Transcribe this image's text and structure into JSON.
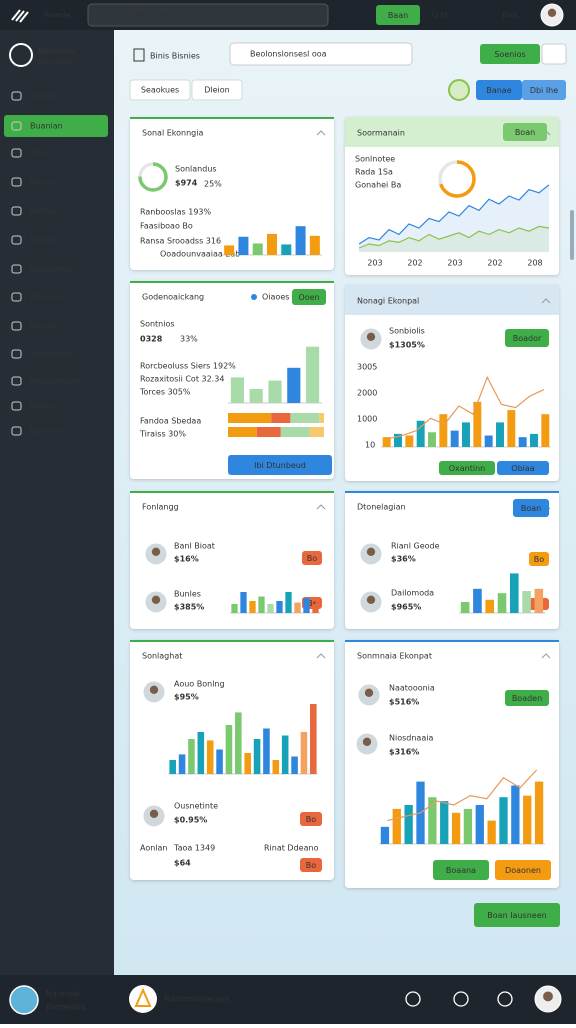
{
  "topbar": {
    "brand": "Rewde",
    "search": "Iuson Blfannglis",
    "button": "Baan",
    "icons": [
      "O ts",
      "Boo"
    ]
  },
  "sidebar": {
    "logo": [
      "Neneate",
      "Hooiiaue"
    ],
    "items": [
      "Soanlut",
      "Buanian",
      "Donis",
      "Banus",
      "Rarbos",
      "Bonglis",
      "Beabddiua",
      "Bomaliy",
      "Hanay",
      "Soaltonulis",
      "Reanomduat",
      "Deaon",
      "Borneon"
    ]
  },
  "header": {
    "title": "Binis Bisnies",
    "search": "Beolonslonsesl ooa",
    "button": "Soenios",
    "tabs": [
      "Seaokues",
      "Dleion"
    ],
    "toggle": [
      "Banae",
      "Dbi Ihe"
    ]
  },
  "cards": [
    {
      "title": "Sonal Ekonngia",
      "texts": [
        "Sonlandus",
        "$974",
        "25%",
        "Ranbooslas 193%",
        "Faasiboao Bo",
        "Ransa Srooadss 316",
        "Ooadounvaaiaa 2ab"
      ],
      "ring": 75,
      "bars": [
        20,
        38,
        24,
        44,
        22,
        60,
        40
      ],
      "colors": [
        "#f39c12",
        "#2e86de",
        "#7bc96f",
        "#f39c12",
        "#17a2b8",
        "#2e86de",
        "#f39c12"
      ]
    },
    {
      "title": "Soormanain",
      "buttons": [
        "Boan"
      ],
      "texts": [
        "Sonlnotee",
        "Rada 1Sa",
        "Gonahei Ba"
      ],
      "ring": 70,
      "xlabels": [
        "203",
        "202",
        "203",
        "202",
        "208"
      ],
      "series": [
        {
          "color": "#2e86de",
          "values": [
            10,
            18,
            15,
            28,
            22,
            35,
            30,
            42,
            38,
            50,
            45,
            58,
            52,
            66,
            60,
            70,
            65,
            78,
            74,
            84
          ]
        },
        {
          "color": "#8bc34a",
          "values": [
            5,
            10,
            8,
            14,
            12,
            18,
            14,
            22,
            16,
            20,
            24,
            18,
            26,
            22,
            28,
            24,
            30,
            26,
            32,
            30
          ]
        }
      ]
    },
    {
      "title": "Godenoaickang",
      "legend": "Oiaoes",
      "buttons": [
        "Ooen",
        "Ibi Dtunbeud"
      ],
      "texts": [
        "Sontnios",
        "0328",
        "33%",
        "Rorcbeoluss Siers 192%",
        "Rozaxitosii Cot 32.34",
        "Torces 305%",
        "Fandoa Sbedaa",
        "Tiraiss 30%"
      ],
      "bars": [
        40,
        22,
        35,
        55,
        88
      ],
      "colors": [
        "#a8dba8",
        "#a8dba8",
        "#a8dba8",
        "#2e86de",
        "#a8dba8"
      ],
      "stack": [
        [
          45,
          20,
          30,
          5
        ],
        [
          30,
          25,
          30,
          15
        ]
      ],
      "stack_colors": [
        "#f39c12",
        "#e8673c",
        "#a8dba8",
        "#f7c96a"
      ]
    },
    {
      "title": "Nonagi Ekonpal",
      "buttons": [
        "Boador",
        "Oxantinn",
        "Obiaa"
      ],
      "texts": [
        "Sonbiolis",
        "$1305%",
        "3005",
        "2000",
        "1000",
        "10"
      ],
      "bars": [
        12,
        16,
        14,
        32,
        18,
        40,
        20,
        30,
        55,
        14,
        30,
        45,
        12,
        16,
        40
      ],
      "colors": [
        "#f39c12",
        "#17a2b8",
        "#f39c12",
        "#17a2b8",
        "#7bc96f",
        "#f39c12",
        "#2e86de",
        "#17a2b8",
        "#f39c12",
        "#2e86de",
        "#17a2b8",
        "#f39c12",
        "#2e86de",
        "#17a2b8",
        "#f39c12"
      ],
      "line": [
        10,
        14,
        20,
        35,
        28,
        50,
        40,
        85,
        52,
        48,
        62,
        70
      ]
    },
    {
      "title": "Fonlangg",
      "buttons": [
        "Bo",
        "Bs"
      ],
      "texts": [
        "Banl Bioat",
        "$16%",
        "Bunles",
        "$385%"
      ],
      "bars": [
        30,
        70,
        40,
        55,
        30,
        40,
        70,
        35,
        50,
        30
      ],
      "colors": [
        "#7bc96f",
        "#2e86de",
        "#f39c12",
        "#7bc96f",
        "#a8dba8",
        "#2e86de",
        "#17a2b8",
        "#f4a261",
        "#2e86de",
        "#e8673c"
      ]
    },
    {
      "title": "Dtonelagian",
      "buttons": [
        "Boan",
        "Bo",
        "Bs"
      ],
      "texts": [
        "Rianl Geode",
        "$36%",
        "Dailomoda",
        "$965%"
      ],
      "bars": [
        25,
        55,
        30,
        45,
        90,
        50,
        55
      ],
      "colors": [
        "#7bc96f",
        "#2e86de",
        "#f39c12",
        "#7bc96f",
        "#17a2b8",
        "#a8dba8",
        "#f4a261"
      ]
    },
    {
      "title": "Sonlaghat",
      "buttons": [
        "Bo",
        "Bo"
      ],
      "texts": [
        "Aouo Bonlng",
        "$95%",
        "Ousnetinte",
        "$0.95%",
        "Aonlan",
        "Taoa 1349",
        "Rinat Ddeano",
        "$64"
      ],
      "bars": [
        20,
        28,
        50,
        60,
        48,
        35,
        70,
        88,
        30,
        50,
        65,
        20,
        55,
        25,
        60,
        100
      ],
      "colors": [
        "#17a2b8",
        "#2e86de",
        "#7bc96f",
        "#17a2b8",
        "#f39c12",
        "#2e86de",
        "#7bc96f",
        "#7bc96f",
        "#f39c12",
        "#17a2b8",
        "#2e86de",
        "#f39c12",
        "#17a2b8",
        "#2e86de",
        "#f4a261",
        "#e8673c"
      ]
    },
    {
      "title": "Sonmnaia Ekonpat",
      "buttons": [
        "Boaden",
        "Boaana",
        "Doaonen"
      ],
      "texts": [
        "Naatooonia",
        "$516%",
        "Niosdnaaia",
        "$316%"
      ],
      "bars": [
        22,
        45,
        50,
        80,
        60,
        55,
        40,
        45,
        50,
        30,
        60,
        75,
        62,
        80
      ],
      "colors": [
        "#2e86de",
        "#f39c12",
        "#17a2b8",
        "#2e86de",
        "#7bc96f",
        "#17a2b8",
        "#f39c12",
        "#7bc96f",
        "#2e86de",
        "#f39c12",
        "#17a2b8",
        "#2e86de",
        "#f39c12",
        "#f39c12"
      ],
      "line": [
        30,
        35,
        40,
        55,
        50,
        62,
        58,
        85,
        72,
        95
      ]
    }
  ],
  "footer": {
    "action": "Boan Iausneen",
    "logo": [
      "Namotel",
      "Bloneiouo"
    ],
    "profile": "Nanbrolionenjan"
  }
}
